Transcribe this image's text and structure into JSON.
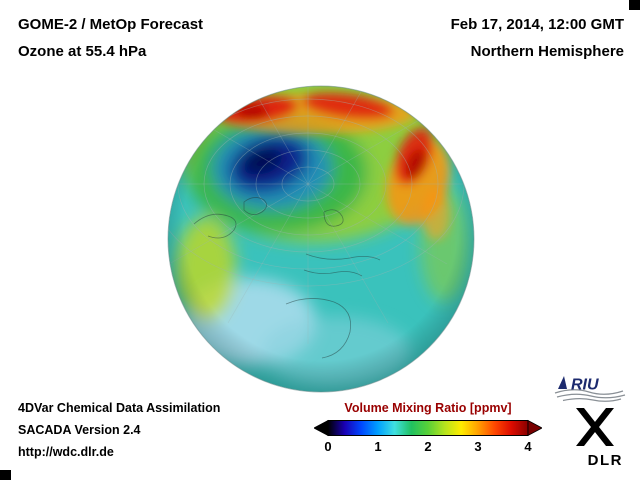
{
  "header": {
    "title_line1": "GOME-2 / MetOp Forecast",
    "title_line2": "Ozone at 55.4 hPa",
    "datetime": "Feb 17, 2014, 12:00 GMT",
    "hemisphere": "Northern Hemisphere"
  },
  "globe": {
    "base_color": "#3ac2bc",
    "low_color": "#0c1c8c",
    "high_color": "#df1a08"
  },
  "footer": {
    "line1": "4DVar Chemical Data Assimilation",
    "line2": "SACADA Version 2.4",
    "line3": "http://wdc.dlr.de"
  },
  "colorbar": {
    "title": "Volume Mixing Ratio [ppmv]",
    "title_color": "#990000",
    "min": 0,
    "max": 4,
    "ticks": [
      "0",
      "1",
      "2",
      "3",
      "4"
    ],
    "gradient": [
      "#000000",
      "#1a00b4",
      "#0048ff",
      "#00a0ff",
      "#40e0e0",
      "#20c060",
      "#58d038",
      "#b4e41e",
      "#ffec00",
      "#ffa000",
      "#ff4800",
      "#dc0c00",
      "#8a0000"
    ],
    "left_arrow_color": "#000000",
    "right_arrow_color": "#780000"
  },
  "logos": {
    "riu": "RIU",
    "dlr": "DLR"
  }
}
